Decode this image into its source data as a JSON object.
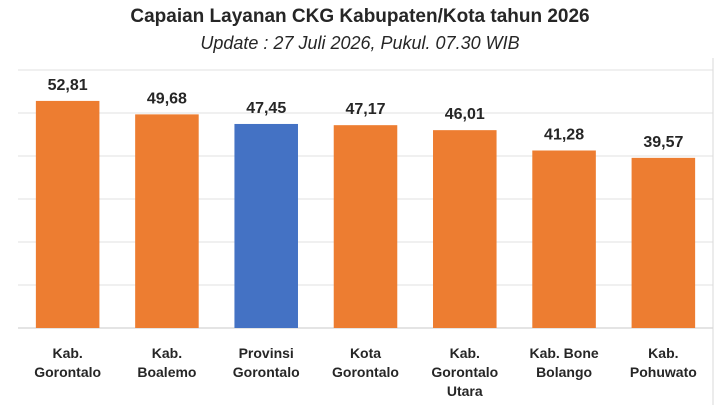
{
  "chart_data": {
    "type": "bar",
    "title": "Capaian Layanan CKG Kabupaten/Kota tahun 2026",
    "subtitle": "Update : 27 Juli 2026, Pukul. 07.30 WIB",
    "categories": [
      [
        "Kab.",
        "Gorontalo"
      ],
      [
        "Kab.",
        "Boalemo"
      ],
      [
        "Provinsi",
        "Gorontalo"
      ],
      [
        "Kota",
        "Gorontalo"
      ],
      [
        "Kab.",
        "Gorontalo",
        "Utara"
      ],
      [
        "Kab. Bone",
        "Bolango"
      ],
      [
        "Kab.",
        "Pohuwato"
      ]
    ],
    "values": [
      52.81,
      49.68,
      47.45,
      47.17,
      46.01,
      41.28,
      39.57
    ],
    "value_labels": [
      "52,81",
      "49,68",
      "47,45",
      "47,17",
      "46,01",
      "41,28",
      "39,57"
    ],
    "bar_colors": [
      "#ED7D31",
      "#ED7D31",
      "#4472C4",
      "#ED7D31",
      "#ED7D31",
      "#ED7D31",
      "#ED7D31"
    ],
    "ylim": [
      0,
      60
    ],
    "gridlines": [
      0,
      10,
      20,
      30,
      40,
      50,
      60
    ],
    "grid": true,
    "xlabel": "",
    "ylabel": ""
  }
}
